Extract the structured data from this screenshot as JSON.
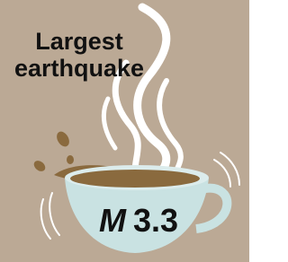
{
  "title_lines": [
    "Largest",
    "earthquake"
  ],
  "magnitude": {
    "symbol": "M",
    "value": 3.3
  }
}
